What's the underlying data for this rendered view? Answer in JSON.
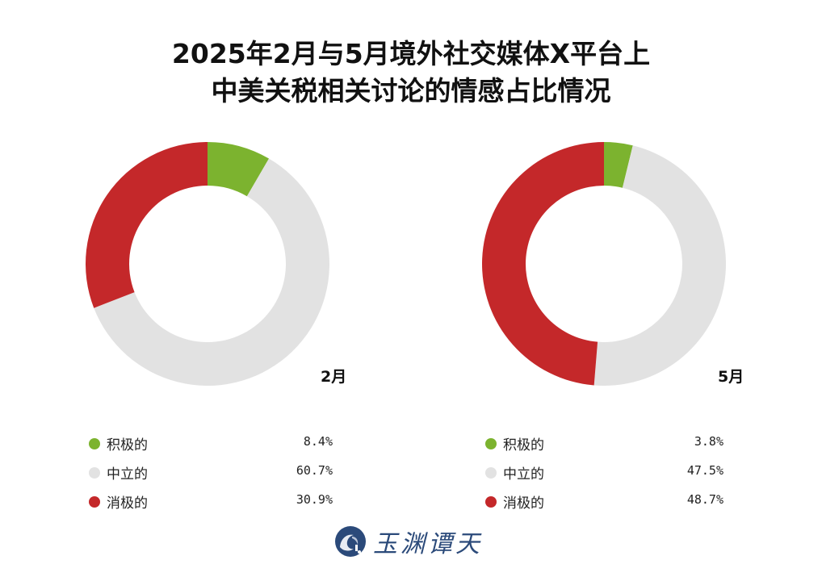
{
  "title": {
    "line1": "2025年2月与5月境外社交媒体X平台上",
    "line2": "中美关税相关讨论的情感占比情况"
  },
  "colors": {
    "positive": "#7cb32f",
    "neutral": "#e2e2e2",
    "negative": "#c4282a",
    "logo": "#2b4a7a"
  },
  "charts": [
    {
      "month_label": "2月",
      "legend": [
        {
          "label": "积极的",
          "value": "8.4%"
        },
        {
          "label": "中立的",
          "value": "60.7%"
        },
        {
          "label": "消极的",
          "value": "30.9%"
        }
      ]
    },
    {
      "month_label": "5月",
      "legend": [
        {
          "label": "积极的",
          "value": "3.8%"
        },
        {
          "label": "中立的",
          "value": "47.5%"
        },
        {
          "label": "消极的",
          "value": "48.7%"
        }
      ]
    }
  ],
  "logo": {
    "text": "玉渊谭天",
    "icon": "wave-circle-icon"
  },
  "chart_data": [
    {
      "type": "pie",
      "subtype": "donut",
      "title": "2025年2月与5月境外社交媒体X平台上中美关税相关讨论的情感占比情况",
      "label": "2月",
      "categories": [
        "积极的",
        "中立的",
        "消极的"
      ],
      "values": [
        8.4,
        60.7,
        30.9
      ],
      "unit": "%",
      "colors": [
        "#7cb32f",
        "#e2e2e2",
        "#c4282a"
      ],
      "start_angle": "12 o'clock, clockwise",
      "legend_position": "bottom"
    },
    {
      "type": "pie",
      "subtype": "donut",
      "title": "2025年2月与5月境外社交媒体X平台上中美关税相关讨论的情感占比情况",
      "label": "5月",
      "categories": [
        "积极的",
        "中立的",
        "消极的"
      ],
      "values": [
        3.8,
        47.5,
        48.7
      ],
      "unit": "%",
      "colors": [
        "#7cb32f",
        "#e2e2e2",
        "#c4282a"
      ],
      "start_angle": "12 o'clock, clockwise",
      "legend_position": "bottom"
    }
  ]
}
